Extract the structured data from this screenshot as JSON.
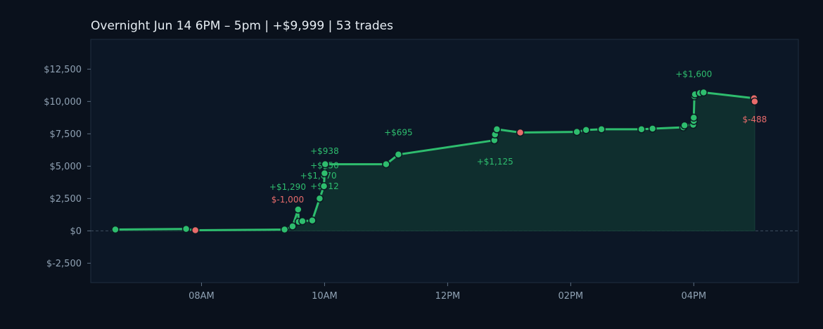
{
  "chart_data": {
    "type": "area",
    "title": "Overnight  Jun 14 6PM – 5pm  |  +$9,999  |  53 trades",
    "xlabel": "",
    "ylabel": "",
    "x_unit": "hour of day",
    "xlim": [
      6.2,
      17.7
    ],
    "ylim": [
      -4000,
      14800
    ],
    "x_ticks": [
      {
        "value": 8,
        "label": "08AM"
      },
      {
        "value": 10,
        "label": "10AM"
      },
      {
        "value": 12,
        "label": "12PM"
      },
      {
        "value": 14,
        "label": "02PM"
      },
      {
        "value": 16,
        "label": "04PM"
      }
    ],
    "y_ticks": [
      {
        "value": -2500,
        "label": "$-2,500"
      },
      {
        "value": 0,
        "label": "$0"
      },
      {
        "value": 2500,
        "label": "$2,500"
      },
      {
        "value": 5000,
        "label": "$5,000"
      },
      {
        "value": 7500,
        "label": "$7,500"
      },
      {
        "value": 10000,
        "label": "$10,000"
      },
      {
        "value": 12500,
        "label": "$12,500"
      }
    ],
    "grid": false,
    "zero_line": "dashed",
    "colors": {
      "background": "#0a111c",
      "plot_background": "#0c1726",
      "line": "#2ebd6e",
      "fill": "#0f2e2e",
      "win_marker": "#2ebd6e",
      "loss_marker": "#e86b6b",
      "zero_line": "#3d4e60",
      "plot_border": "#1f2e40"
    },
    "series": [
      {
        "points": [
          {
            "x": 6.6,
            "y": 100,
            "result": "win"
          },
          {
            "x": 7.75,
            "y": 150,
            "result": "win"
          },
          {
            "x": 7.9,
            "y": 50,
            "result": "loss"
          },
          {
            "x": 9.35,
            "y": 100,
            "result": "win"
          },
          {
            "x": 9.48,
            "y": 350,
            "result": "win"
          },
          {
            "x": 9.57,
            "y": 1650,
            "result": "win"
          },
          {
            "x": 9.58,
            "y": 700,
            "result": "win"
          },
          {
            "x": 9.64,
            "y": 750,
            "result": "win"
          },
          {
            "x": 9.8,
            "y": 800,
            "result": "win"
          },
          {
            "x": 9.92,
            "y": 2500,
            "result": "win"
          },
          {
            "x": 9.99,
            "y": 3450,
            "result": "win"
          },
          {
            "x": 10.0,
            "y": 4450,
            "result": "win"
          },
          {
            "x": 10.01,
            "y": 5150,
            "result": "win"
          },
          {
            "x": 11.0,
            "y": 5150,
            "result": "win"
          },
          {
            "x": 11.2,
            "y": 5900,
            "result": "win"
          },
          {
            "x": 12.76,
            "y": 7000,
            "result": "win"
          },
          {
            "x": 12.77,
            "y": 7450,
            "result": "win"
          },
          {
            "x": 12.8,
            "y": 7850,
            "result": "win"
          },
          {
            "x": 13.18,
            "y": 7600,
            "result": "loss"
          },
          {
            "x": 14.1,
            "y": 7650,
            "result": "win"
          },
          {
            "x": 14.25,
            "y": 7800,
            "result": "win"
          },
          {
            "x": 14.5,
            "y": 7850,
            "result": "win"
          },
          {
            "x": 15.15,
            "y": 7850,
            "result": "win"
          },
          {
            "x": 15.33,
            "y": 7900,
            "result": "win"
          },
          {
            "x": 15.83,
            "y": 8000,
            "result": "win"
          },
          {
            "x": 15.85,
            "y": 8150,
            "result": "win"
          },
          {
            "x": 15.99,
            "y": 8200,
            "result": "win"
          },
          {
            "x": 16.0,
            "y": 8500,
            "result": "win"
          },
          {
            "x": 16.0,
            "y": 8750,
            "result": "win"
          },
          {
            "x": 16.01,
            "y": 10400,
            "result": "win"
          },
          {
            "x": 16.02,
            "y": 10550,
            "result": "win"
          },
          {
            "x": 16.1,
            "y": 10650,
            "result": "win"
          },
          {
            "x": 16.16,
            "y": 10700,
            "result": "win"
          },
          {
            "x": 16.98,
            "y": 10250,
            "result": "loss"
          },
          {
            "x": 16.99,
            "y": 10000,
            "result": "loss"
          }
        ]
      }
    ],
    "annotations": [
      {
        "text": "$-1,000",
        "x": 9.4,
        "y": 2400,
        "type": "loss"
      },
      {
        "text": "+$1,290",
        "x": 9.4,
        "y": 3400,
        "type": "win"
      },
      {
        "text": "+$812",
        "x": 10.0,
        "y": 3450,
        "type": "win"
      },
      {
        "text": "+$1,070",
        "x": 9.9,
        "y": 4250,
        "type": "win"
      },
      {
        "text": "+$250",
        "x": 10.0,
        "y": 5050,
        "type": "win"
      },
      {
        "text": "+$938",
        "x": 10.0,
        "y": 6150,
        "type": "win"
      },
      {
        "text": "+$695",
        "x": 11.2,
        "y": 7600,
        "type": "win"
      },
      {
        "text": "+$1,125",
        "x": 12.77,
        "y": 5350,
        "type": "win"
      },
      {
        "text": "+$1,600",
        "x": 16.0,
        "y": 12100,
        "type": "win"
      },
      {
        "text": "$-488",
        "x": 16.99,
        "y": 8600,
        "type": "loss"
      }
    ]
  }
}
